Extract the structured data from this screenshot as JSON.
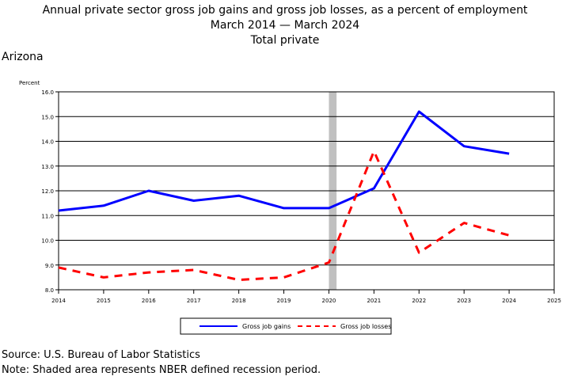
{
  "title_lines": [
    "Annual private sector gross job gains and gross job losses, as a percent of employment",
    "March 2014 — March 2024",
    "Total private"
  ],
  "region": "Arizona",
  "footer": {
    "source": "Source: U.S. Bureau of Labor Statistics",
    "note": "Note: Shaded area represents NBER defined recession period."
  },
  "chart_data": {
    "type": "line",
    "ylabel": "Percent",
    "ylim": [
      8.0,
      16.0
    ],
    "y_ticks": [
      "8.0",
      "9.0",
      "10.0",
      "11.0",
      "12.0",
      "13.0",
      "14.0",
      "15.0",
      "16.0"
    ],
    "xlim": [
      2014,
      2025
    ],
    "x_ticks": [
      "2014",
      "2015",
      "2016",
      "2017",
      "2018",
      "2019",
      "2020",
      "2021",
      "2022",
      "2023",
      "2024",
      "2025"
    ],
    "grid": true,
    "recession": {
      "start": 2020.0,
      "end": 2020.17,
      "color": "#c0c0c0"
    },
    "series": [
      {
        "name": "Gross job gains",
        "style": "solid",
        "color": "#0000ff",
        "x": [
          2014,
          2015,
          2016,
          2017,
          2018,
          2019,
          2020,
          2021,
          2022,
          2023,
          2024
        ],
        "values": [
          11.2,
          11.4,
          12.0,
          11.6,
          11.8,
          11.3,
          11.3,
          12.1,
          15.2,
          13.8,
          13.5
        ]
      },
      {
        "name": "Gross job losses",
        "style": "dashed",
        "color": "#ff0000",
        "x": [
          2014,
          2015,
          2016,
          2017,
          2018,
          2019,
          2020,
          2021,
          2022,
          2023,
          2024
        ],
        "values": [
          8.9,
          8.5,
          8.7,
          8.8,
          8.4,
          8.5,
          9.1,
          13.6,
          9.5,
          10.7,
          10.2
        ]
      }
    ]
  }
}
